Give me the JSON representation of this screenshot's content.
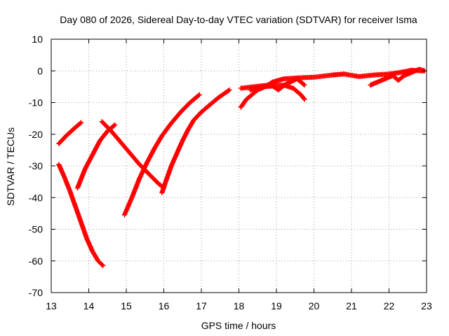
{
  "chart_data": {
    "type": "scatter",
    "title": "Day 080 of 2026, Sidereal Day-to-day VTEC variation (SDTVAR) for receiver Isma",
    "xlabel": "GPS time / hours",
    "ylabel": "SDTVAR / TECUs",
    "xlim": [
      13,
      23
    ],
    "ylim": [
      -70,
      10
    ],
    "xticks": [
      "13",
      "14",
      "15",
      "16",
      "17",
      "18",
      "19",
      "20",
      "21",
      "22",
      "23"
    ],
    "yticks": [
      "10",
      "0",
      "-10",
      "-20",
      "-30",
      "-40",
      "-50",
      "-60",
      "-70"
    ],
    "grid": true,
    "marker": "plus",
    "color": "#ff0000",
    "series": [
      {
        "name": "track-1",
        "points": [
          [
            13.2,
            -23
          ],
          [
            13.4,
            -20.5
          ],
          [
            13.6,
            -18.3
          ],
          [
            13.8,
            -16.3
          ]
        ]
      },
      {
        "name": "track-2",
        "points": [
          [
            13.2,
            -29.5
          ],
          [
            13.35,
            -33.5
          ],
          [
            13.5,
            -38
          ],
          [
            13.65,
            -43
          ],
          [
            13.8,
            -48
          ],
          [
            13.95,
            -53
          ],
          [
            14.1,
            -57
          ],
          [
            14.25,
            -60
          ],
          [
            14.38,
            -61.5
          ]
        ]
      },
      {
        "name": "track-3",
        "points": [
          [
            13.7,
            -37
          ],
          [
            13.9,
            -31
          ],
          [
            14.1,
            -26.5
          ],
          [
            14.3,
            -22
          ],
          [
            14.5,
            -19
          ],
          [
            14.7,
            -17
          ]
        ]
      },
      {
        "name": "track-4",
        "points": [
          [
            14.35,
            -16
          ],
          [
            14.6,
            -19
          ],
          [
            14.85,
            -22.5
          ],
          [
            15.1,
            -26
          ],
          [
            15.35,
            -29.5
          ],
          [
            15.6,
            -32.5
          ],
          [
            15.85,
            -35.5
          ],
          [
            16.0,
            -37
          ]
        ]
      },
      {
        "name": "track-5",
        "points": [
          [
            14.95,
            -45.5
          ],
          [
            15.15,
            -40
          ],
          [
            15.35,
            -34
          ],
          [
            15.55,
            -29
          ],
          [
            15.75,
            -24.5
          ],
          [
            15.95,
            -20.5
          ],
          [
            16.2,
            -16.5
          ],
          [
            16.45,
            -13
          ],
          [
            16.7,
            -10
          ],
          [
            16.95,
            -7.5
          ]
        ]
      },
      {
        "name": "track-6",
        "points": [
          [
            15.95,
            -38.5
          ],
          [
            16.05,
            -35
          ],
          [
            16.2,
            -30
          ],
          [
            16.35,
            -26
          ],
          [
            16.5,
            -22
          ],
          [
            16.65,
            -18.5
          ],
          [
            16.8,
            -15.5
          ],
          [
            17.0,
            -13
          ],
          [
            17.2,
            -11
          ],
          [
            17.45,
            -8.5
          ],
          [
            17.75,
            -6
          ]
        ]
      },
      {
        "name": "track-7",
        "points": [
          [
            18.05,
            -11.5
          ],
          [
            18.2,
            -9
          ],
          [
            18.35,
            -7.5
          ],
          [
            18.5,
            -6
          ],
          [
            18.7,
            -5
          ],
          [
            18.9,
            -3.5
          ],
          [
            19.2,
            -2.5
          ],
          [
            19.6,
            -2.2
          ],
          [
            20.0,
            -2
          ],
          [
            20.5,
            -1.3
          ],
          [
            20.8,
            -1
          ],
          [
            21.2,
            -1.8
          ],
          [
            21.6,
            -1.3
          ],
          [
            22.0,
            -1
          ],
          [
            22.3,
            -0.5
          ],
          [
            22.6,
            0.2
          ],
          [
            22.9,
            0
          ]
        ]
      },
      {
        "name": "track-8",
        "points": [
          [
            18.05,
            -5.5
          ],
          [
            18.4,
            -5
          ],
          [
            18.8,
            -4.5
          ],
          [
            19.2,
            -4.5
          ],
          [
            19.45,
            -5.5
          ],
          [
            19.65,
            -7.5
          ],
          [
            19.75,
            -9
          ]
        ]
      },
      {
        "name": "track-9",
        "points": [
          [
            18.3,
            -6
          ],
          [
            18.6,
            -5
          ],
          [
            18.9,
            -4.8
          ],
          [
            19.05,
            -6
          ],
          [
            19.25,
            -4.2
          ],
          [
            19.55,
            -2.5
          ],
          [
            19.75,
            -4.5
          ]
        ]
      },
      {
        "name": "track-10",
        "points": [
          [
            21.5,
            -4.5
          ],
          [
            21.7,
            -3.5
          ],
          [
            21.9,
            -2.5
          ],
          [
            22.1,
            -1.5
          ],
          [
            22.25,
            -3
          ],
          [
            22.4,
            -1.5
          ],
          [
            22.6,
            -0.5
          ],
          [
            22.8,
            0.5
          ],
          [
            22.95,
            0
          ]
        ]
      }
    ]
  }
}
